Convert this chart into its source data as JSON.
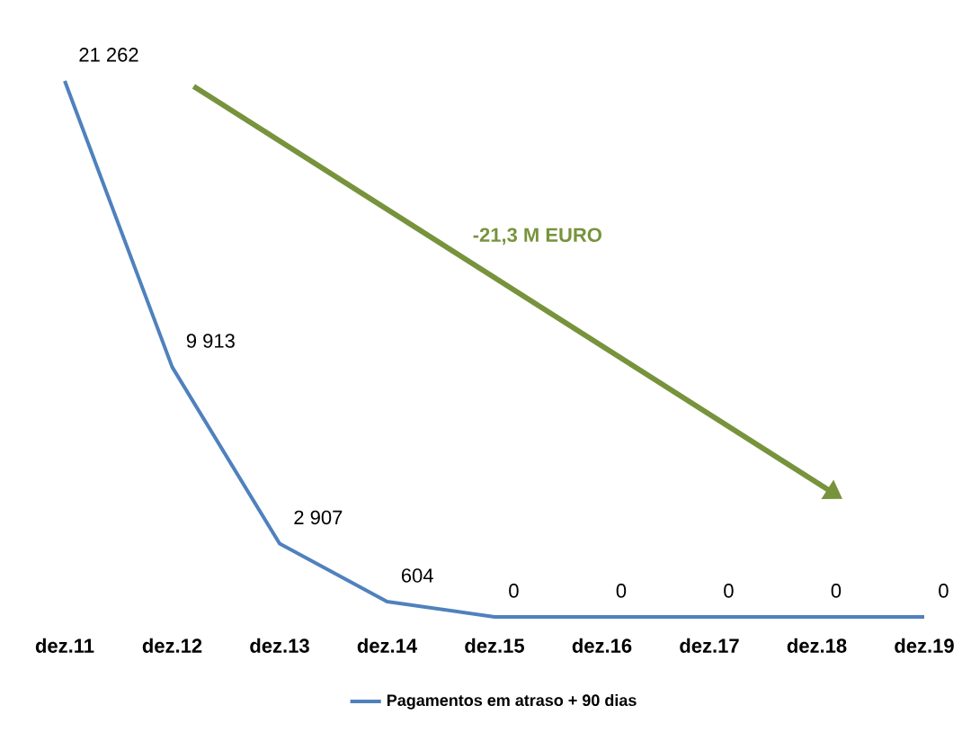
{
  "chart_data": {
    "type": "line",
    "categories": [
      "dez.11",
      "dez.12",
      "dez.13",
      "dez.14",
      "dez.15",
      "dez.16",
      "dez.17",
      "dez.18",
      "dez.19"
    ],
    "series": [
      {
        "name": "Pagamentos em atraso + 90 dias",
        "color": "#4f81bd",
        "values": [
          21262,
          9913,
          2907,
          604,
          0,
          0,
          0,
          0,
          0
        ],
        "value_labels": [
          "21 262",
          "9 913",
          "2 907",
          "604",
          "0",
          "0",
          "0",
          "0",
          "0"
        ]
      }
    ],
    "annotations": [
      "-21,3 M EURO"
    ],
    "legend": "bottom",
    "grid": false,
    "marker": "none",
    "line_style": "solid"
  }
}
